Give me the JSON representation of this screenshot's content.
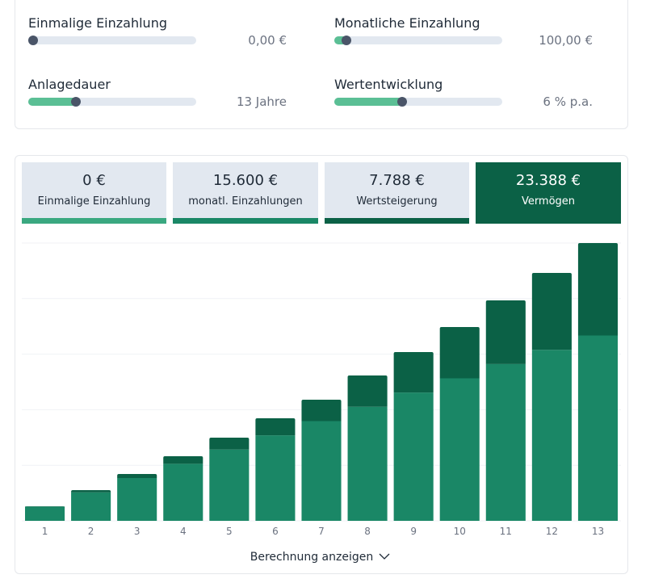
{
  "controls": [
    {
      "label": "Einmalige Einzahlung",
      "value": "0,00 €"
    },
    {
      "label": "Monatliche Einzahlung",
      "value": "100,00 €"
    },
    {
      "label": "Anlagedauer",
      "value": "13 Jahre"
    },
    {
      "label": "Wertentwicklung",
      "value": "6 % p.a."
    }
  ],
  "summary": [
    {
      "value": "0 €",
      "label": "Einmalige Einzahlung"
    },
    {
      "value": "15.600 €"
    },
    {
      "value": "7.788 €"
    },
    {
      "value": "23.388 €",
      "label": "Vermögen"
    }
  ],
  "chart_data": {
    "type": "stacked_bar",
    "categories": [
      "1",
      "2",
      "3",
      "4",
      "5",
      "6",
      "7",
      "8",
      "9",
      "10",
      "11",
      "12",
      "13"
    ],
    "series": [
      {
        "name": "monatl. Einzahlungen",
        "color": "#1a8766",
        "values": [
          1200,
          2400,
          3600,
          4800,
          6000,
          7200,
          8400,
          9600,
          10800,
          12000,
          13200,
          14400,
          15600
        ]
      },
      {
        "name": "Wertsteigerung",
        "color": "#0b6146",
        "values": [
          24,
          183,
          343,
          639,
          1003,
          1434,
          1802,
          2638,
          3410,
          4317,
          5361,
          6473,
          7788
        ]
      }
    ],
    "ylim": [
      0,
      23388
    ],
    "yticks": [
      0,
      4678,
      9355,
      14033,
      18710,
      23388
    ],
    "grid": true
  },
  "footer": {
    "link": "Berechnung anzeigen"
  }
}
